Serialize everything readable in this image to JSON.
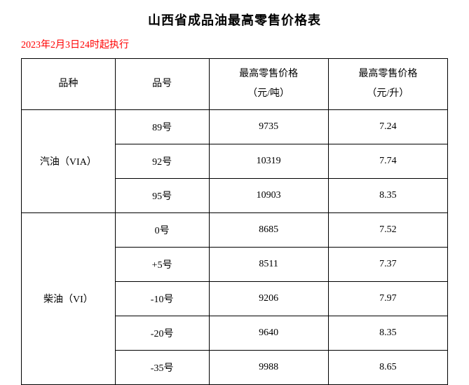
{
  "title": "山西省成品油最高零售价格表",
  "effective_date": "2023年2月3日24时起执行",
  "table": {
    "headers": {
      "variety": "品种",
      "grade": "品号",
      "price_ton_line1": "最高零售价格",
      "price_ton_line2": "（元/吨）",
      "price_liter_line1": "最高零售价格",
      "price_liter_line2": "（元/升）"
    },
    "groups": [
      {
        "variety": "汽油（VIA）",
        "rows": [
          {
            "grade": "89号",
            "price_ton": "9735",
            "price_liter": "7.24"
          },
          {
            "grade": "92号",
            "price_ton": "10319",
            "price_liter": "7.74"
          },
          {
            "grade": "95号",
            "price_ton": "10903",
            "price_liter": "8.35"
          }
        ]
      },
      {
        "variety": "柴油（VI）",
        "rows": [
          {
            "grade": "0号",
            "price_ton": "8685",
            "price_liter": "7.52"
          },
          {
            "grade": "+5号",
            "price_ton": "8511",
            "price_liter": "7.37"
          },
          {
            "grade": "-10号",
            "price_ton": "9206",
            "price_liter": "7.97"
          },
          {
            "grade": "-20号",
            "price_ton": "9640",
            "price_liter": "8.35"
          },
          {
            "grade": "-35号",
            "price_ton": "9988",
            "price_liter": "8.65"
          }
        ]
      }
    ]
  },
  "colors": {
    "text": "#000000",
    "date": "#ff0000",
    "border": "#000000",
    "background": "#ffffff"
  }
}
